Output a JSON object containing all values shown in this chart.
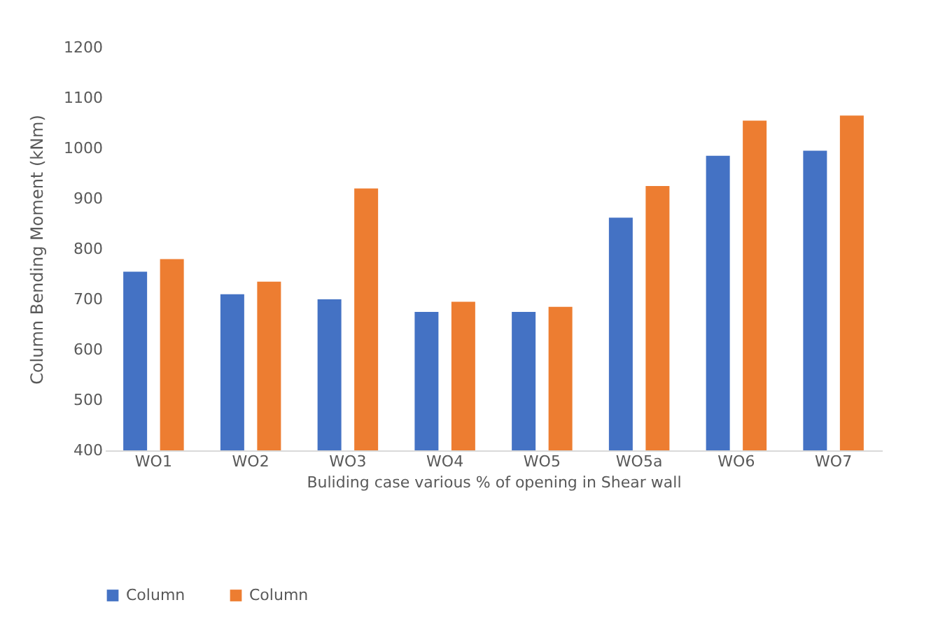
{
  "chart_data": {
    "type": "bar",
    "xlabel": "Buliding case various % of opening in Shear wall",
    "ylabel": "Column Bending Moment (kNm)",
    "categories": [
      "WO1",
      "WO2",
      "WO3",
      "WO4",
      "WO5",
      "WO5a",
      "WO6",
      "WO7"
    ],
    "series": [
      {
        "name": "Column",
        "color": "#4472c4",
        "values": [
          755,
          710,
          700,
          675,
          675,
          862,
          985,
          995
        ]
      },
      {
        "name": "Column",
        "color": "#ed7d31",
        "values": [
          780,
          735,
          920,
          695,
          685,
          925,
          1055,
          1065
        ]
      }
    ],
    "ylim": [
      400,
      1200
    ],
    "yticks": [
      400,
      500,
      600,
      700,
      800,
      900,
      1000,
      1100,
      1200
    ],
    "grid": false,
    "legend": "bottom"
  }
}
